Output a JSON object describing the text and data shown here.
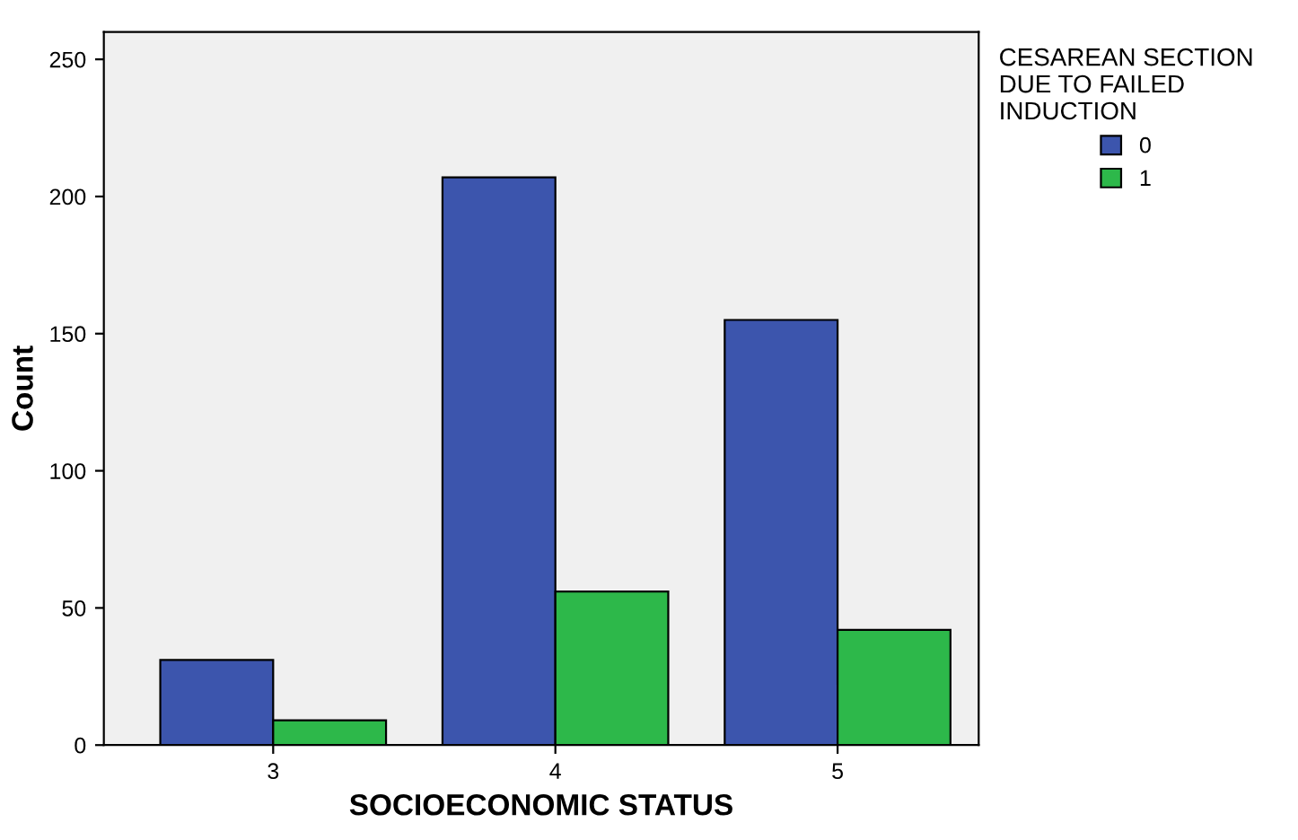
{
  "chart_data": {
    "type": "bar",
    "xlabel": "SOCIOECONOMIC STATUS",
    "ylabel": "Count",
    "legend_title": "CESAREAN SECTION\nDUE TO FAILED\nINDUCTION",
    "categories": [
      "3",
      "4",
      "5"
    ],
    "series": [
      {
        "name": "0",
        "color": "#3c55ad",
        "values": [
          31,
          207,
          155
        ]
      },
      {
        "name": "1",
        "color": "#2db84a",
        "values": [
          9,
          56,
          42
        ]
      }
    ],
    "ylim": [
      0,
      260
    ],
    "yticks": [
      0,
      50,
      100,
      150,
      200,
      250
    ],
    "grid": false,
    "legend": "top right"
  }
}
